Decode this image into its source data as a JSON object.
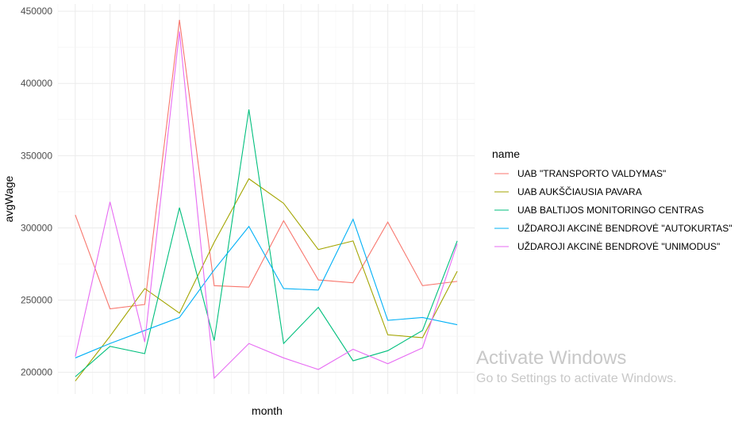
{
  "chart_data": {
    "type": "line",
    "xlabel": "month",
    "ylabel": "avgWage",
    "ylim": [
      185000,
      455000
    ],
    "yticks": [
      200000,
      250000,
      300000,
      350000,
      400000,
      450000
    ],
    "ytick_labels": [
      "200000",
      "250000",
      "300000",
      "350000",
      "400000",
      "450000"
    ],
    "x": [
      1,
      2,
      3,
      4,
      5,
      6,
      7,
      8,
      9,
      10,
      11,
      12
    ],
    "xlim": [
      0.5,
      12.5
    ],
    "grid": true,
    "legend_title": "name",
    "legend_position": "right",
    "series": [
      {
        "name": "UAB \"TRANSPORTO VALDYMAS\"",
        "color": "#F8766D",
        "values": [
          309000,
          244000,
          247000,
          444000,
          260000,
          259000,
          305000,
          264000,
          262000,
          304000,
          260000,
          263000
        ]
      },
      {
        "name": "UAB AUKŠČIAUSIA PAVARA",
        "color": "#A3A500",
        "values": [
          194000,
          225000,
          258000,
          241000,
          290000,
          334000,
          317000,
          285000,
          291000,
          226000,
          224000,
          270000
        ]
      },
      {
        "name": "UAB BALTIJOS MONITORINGO CENTRAS",
        "color": "#00BF7D",
        "values": [
          197000,
          218000,
          213000,
          314000,
          222000,
          382000,
          220000,
          245000,
          208000,
          215000,
          229000,
          291000
        ]
      },
      {
        "name": "UŽDAROJI AKCINĖ BENDROVĖ \"AUTOKURTAS\"",
        "color": "#00B0F6",
        "values": [
          210000,
          220000,
          229000,
          238000,
          271000,
          301000,
          258000,
          257000,
          306000,
          236000,
          238000,
          233000
        ]
      },
      {
        "name": "UŽDAROJI AKCINĖ BENDROVĖ \"UNIMODUS\"",
        "color": "#E76BF3",
        "values": [
          211000,
          318000,
          221000,
          436000,
          196000,
          220000,
          210000,
          202000,
          216000,
          206000,
          217000,
          289000
        ]
      }
    ]
  },
  "watermark": {
    "title": "Activate Windows",
    "subtitle": "Go to Settings to activate Windows."
  }
}
